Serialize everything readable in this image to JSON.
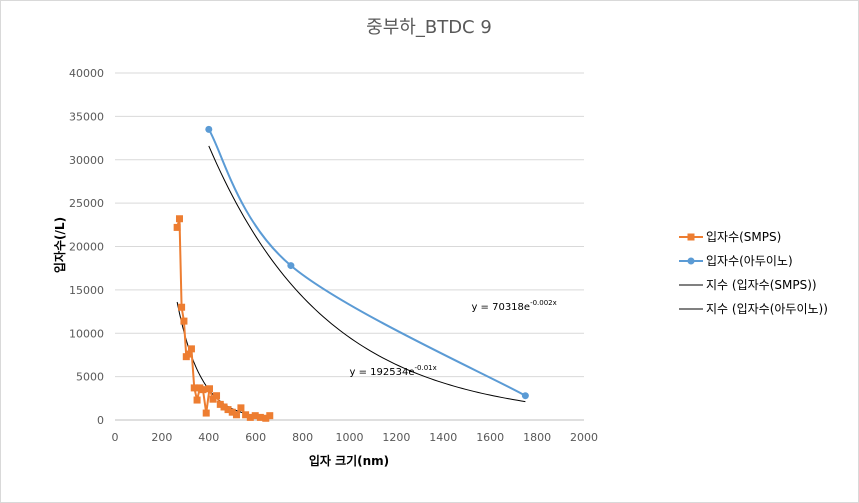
{
  "chart_data": {
    "type": "scatter",
    "title": "중부하_BTDC 9",
    "xlabel": "입자 크기(nm)",
    "ylabel": "입자수(/L)",
    "xlim": [
      0,
      2000
    ],
    "ylim": [
      0,
      40000
    ],
    "x_ticks": [
      "0",
      "200",
      "400",
      "600",
      "800",
      "1000",
      "1200",
      "1400",
      "1600",
      "1800",
      "2000"
    ],
    "y_ticks": [
      "0",
      "5000",
      "10000",
      "15000",
      "20000",
      "25000",
      "30000",
      "35000",
      "40000"
    ],
    "grid": true,
    "legend_position": "right",
    "series": [
      {
        "name": "입자수(SMPS)",
        "color": "#ED7D31",
        "marker": "square",
        "line": "straight",
        "x": [
          265,
          275,
          284,
          294,
          304,
          315,
          326,
          338,
          350,
          362,
          375,
          389,
          403,
          418,
          433,
          449,
          465,
          482,
          500,
          518,
          537,
          557,
          577,
          598,
          620,
          643,
          660
        ],
        "y": [
          22200,
          23200,
          13000,
          11400,
          7300,
          7600,
          8200,
          3700,
          2300,
          3700,
          3500,
          800,
          3600,
          2400,
          2800,
          1800,
          1500,
          1200,
          900,
          600,
          1400,
          600,
          300,
          500,
          300,
          200,
          500
        ]
      },
      {
        "name": "입자수(아두이노)",
        "color": "#5B9BD5",
        "marker": "circle",
        "line": "smooth",
        "x": [
          400,
          750,
          1750
        ],
        "y": [
          33500,
          17800,
          2800
        ]
      },
      {
        "name": "지수 (입자수(SMPS))",
        "color": "#000000",
        "type": "exponential-trendline",
        "a": 192534,
        "b": -0.01,
        "x_range": [
          265,
          660
        ]
      },
      {
        "name": "지수 (입자수(아두이노))",
        "color": "#000000",
        "type": "exponential-trendline",
        "a": 70318,
        "b": -0.002,
        "x_range": [
          400,
          1750
        ]
      }
    ],
    "annotations": [
      {
        "base": "y = 192534e",
        "exp": "-0.01x",
        "x": 1000,
        "y": 5200
      },
      {
        "base": "y = 70318e",
        "exp": "-0.002x",
        "x": 1520,
        "y": 12700
      }
    ]
  }
}
